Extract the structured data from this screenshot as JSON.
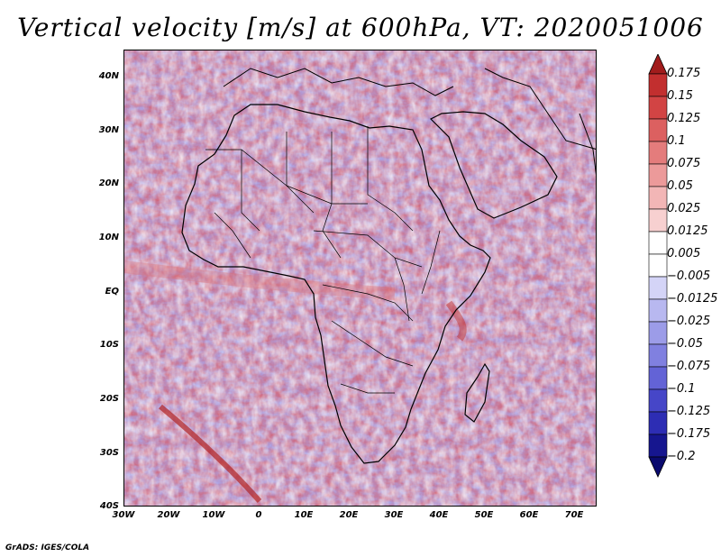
{
  "title": "Vertical velocity [m/s] at 600hPa, VT: 2020051006",
  "credit": "GrADS: IGES/COLA",
  "map": {
    "variable": "Vertical velocity",
    "units": "m/s",
    "level": "600hPa",
    "valid_time": "2020051006",
    "lat_range": [
      -40,
      45
    ],
    "lon_range": [
      -30,
      75
    ],
    "y_ticks": [
      "40N",
      "30N",
      "20N",
      "10N",
      "EQ",
      "10S",
      "20S",
      "30S",
      "40S"
    ],
    "x_ticks": [
      "30W",
      "20W",
      "10W",
      "0",
      "10E",
      "20E",
      "30E",
      "40E",
      "50E",
      "60E",
      "70E"
    ]
  },
  "colorbar": {
    "labels": [
      "0.175",
      "0.15",
      "0.125",
      "0.1",
      "0.075",
      "0.05",
      "0.025",
      "0.0125",
      "0.005",
      "−0.005",
      "−0.0125",
      "−0.025",
      "−0.05",
      "−0.075",
      "−0.1",
      "−0.125",
      "−0.175",
      "−0.2"
    ],
    "colors": [
      "#a11c1c",
      "#c22f2f",
      "#d24444",
      "#dc6060",
      "#e47c7c",
      "#ec9a9a",
      "#f2b6b6",
      "#f7d0d0",
      "#ffffff",
      "#ffffff",
      "#d4d4f7",
      "#b8b8f0",
      "#9c9ce8",
      "#8080e0",
      "#6363d6",
      "#4646c8",
      "#2d2db4",
      "#16168f",
      "#0a0a6e"
    ]
  }
}
